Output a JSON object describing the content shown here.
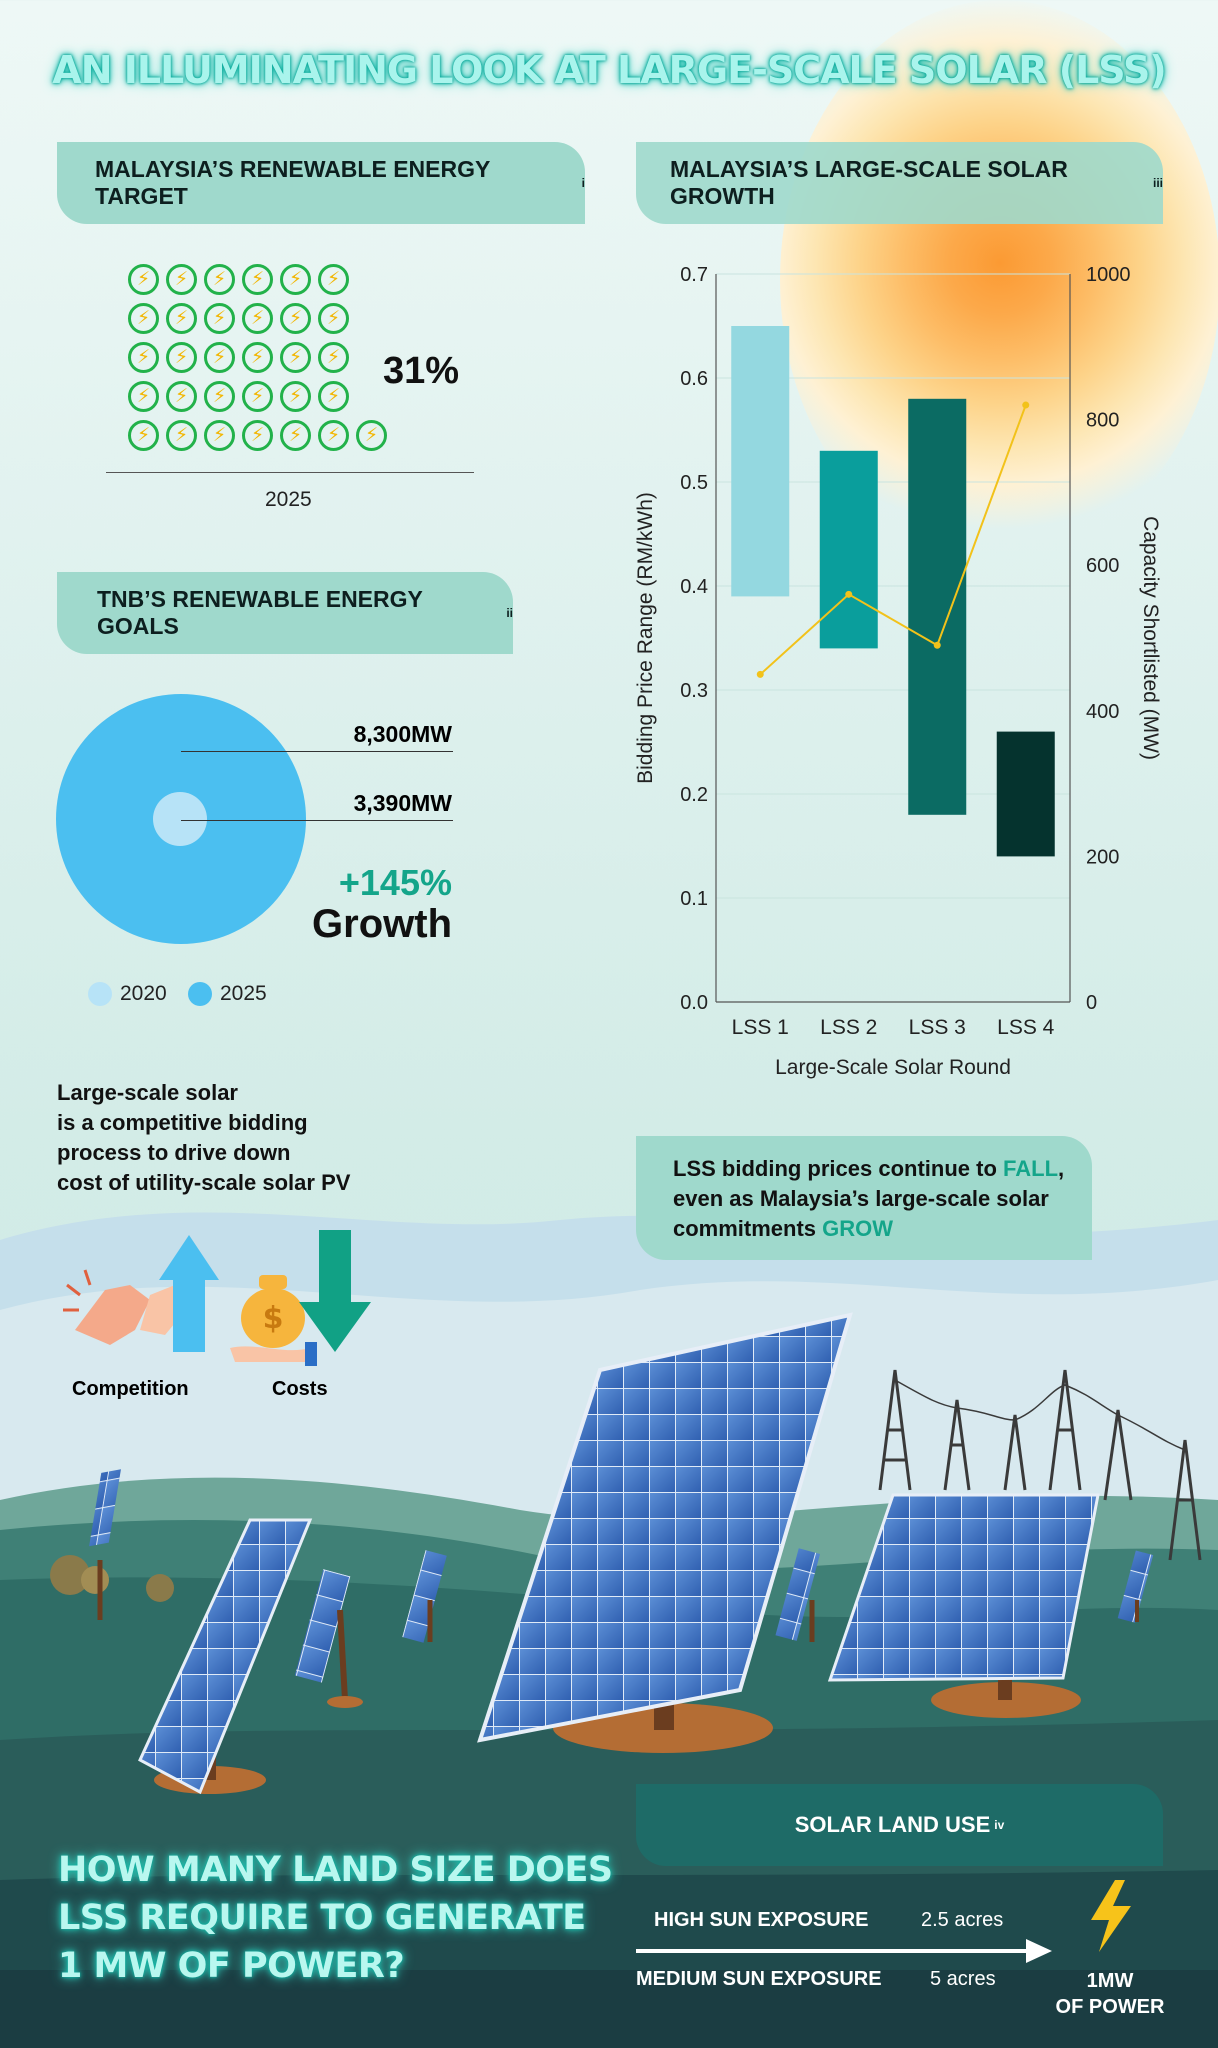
{
  "title": "AN ILLUMINATING LOOK AT LARGE-SCALE SOLAR (LSS)",
  "re_target": {
    "heading": "MALAYSIA’S RENEWABLE ENERGY TARGET",
    "footnote": "i",
    "percent": "31%",
    "year": "2025",
    "icon": "energy-recycle-icon",
    "icon_count": 31
  },
  "tnb": {
    "heading": "TNB’S RENEWABLE ENERGY GOALS",
    "footnote": "ii",
    "value_2025": "8,300MW",
    "value_2020": "3,390MW",
    "growth_pct": "+145%",
    "growth_label": "Growth",
    "legend": [
      "2020",
      "2025"
    ],
    "colors": {
      "2020": "#b7e3f7",
      "2025": "#4bbff0"
    }
  },
  "lss_growth": {
    "heading": "MALAYSIA’S LARGE-SCALE SOLAR GROWTH",
    "footnote": "iii"
  },
  "chart_data": {
    "type": "bar",
    "categories": [
      "LSS 1",
      "LSS 2",
      "LSS 3",
      "LSS 4"
    ],
    "xlabel": "Large-Scale Solar Round",
    "ylabel": "Bidding Price Range (RM/kWh)",
    "y2label": "Capacity Shortlisted (MW)",
    "ylim": [
      0,
      0.7
    ],
    "y2lim": [
      0,
      1000
    ],
    "yticks": [
      "0.0",
      "0.1",
      "0.2",
      "0.3",
      "0.4",
      "0.5",
      "0.6",
      "0.7"
    ],
    "y2ticks": [
      "0",
      "200",
      "400",
      "600",
      "800",
      "1000"
    ],
    "series": [
      {
        "type": "floating-bar",
        "low": [
          0.39,
          0.34,
          0.18,
          0.14
        ],
        "high": [
          0.65,
          0.53,
          0.58,
          0.26
        ],
        "colors": [
          "#94d8e0",
          "#0a9e9c",
          "#0b6b63",
          "#05332e"
        ]
      },
      {
        "type": "line",
        "axis": "right",
        "values": [
          450,
          560,
          490,
          820
        ],
        "color": "#f2c21a"
      }
    ]
  },
  "lss_info": {
    "text_a": "Large-scale solar",
    "text_b": "is a competitive bidding",
    "text_c": "process to drive down",
    "text_d": "cost of utility-scale solar PV",
    "competition": "Competition",
    "costs": "Costs"
  },
  "trend": {
    "pre": "LSS bidding prices continue to ",
    "fall": "FALL",
    "mid1": ",",
    "mid2": "even as Malaysia’s large-scale solar",
    "mid3": "commitments ",
    "grow": "GROW"
  },
  "question": {
    "line1": "HOW MANY LAND SIZE DOES",
    "line2": "LSS REQUIRE TO GENERATE",
    "line3": "1 MW OF POWER?"
  },
  "land_use": {
    "heading": "SOLAR LAND USE",
    "footnote": "iv",
    "rows": [
      {
        "label": "HIGH SUN EXPOSURE",
        "value": "2.5 acres"
      },
      {
        "label": "MEDIUM SUN EXPOSURE",
        "value": "5 acres"
      }
    ],
    "power_a": "1MW",
    "power_b": "OF POWER"
  }
}
